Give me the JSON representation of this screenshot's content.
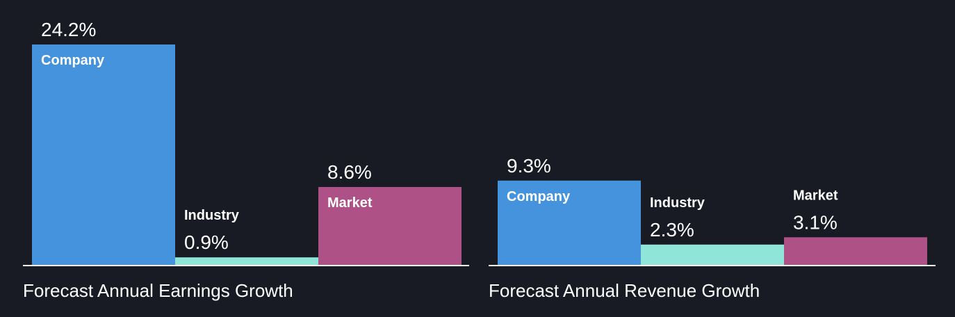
{
  "chart_data": [
    {
      "type": "bar",
      "title": "Forecast Annual Earnings Growth",
      "categories": [
        "Company",
        "Industry",
        "Market"
      ],
      "values": [
        24.2,
        0.9,
        8.6
      ],
      "value_labels": [
        "24.2%",
        "0.9%",
        "8.6%"
      ],
      "colors": [
        "#4593dd",
        "#8fe5d8",
        "#ad5186"
      ],
      "ylim": [
        0,
        24.2
      ],
      "grid": false,
      "legend": "none"
    },
    {
      "type": "bar",
      "title": "Forecast Annual Revenue Growth",
      "categories": [
        "Company",
        "Industry",
        "Market"
      ],
      "values": [
        9.3,
        2.3,
        3.1
      ],
      "value_labels": [
        "9.3%",
        "2.3%",
        "3.1%"
      ],
      "colors": [
        "#4593dd",
        "#8fe5d8",
        "#ad5186"
      ],
      "ylim": [
        0,
        24.2
      ],
      "grid": false,
      "legend": "none"
    }
  ]
}
